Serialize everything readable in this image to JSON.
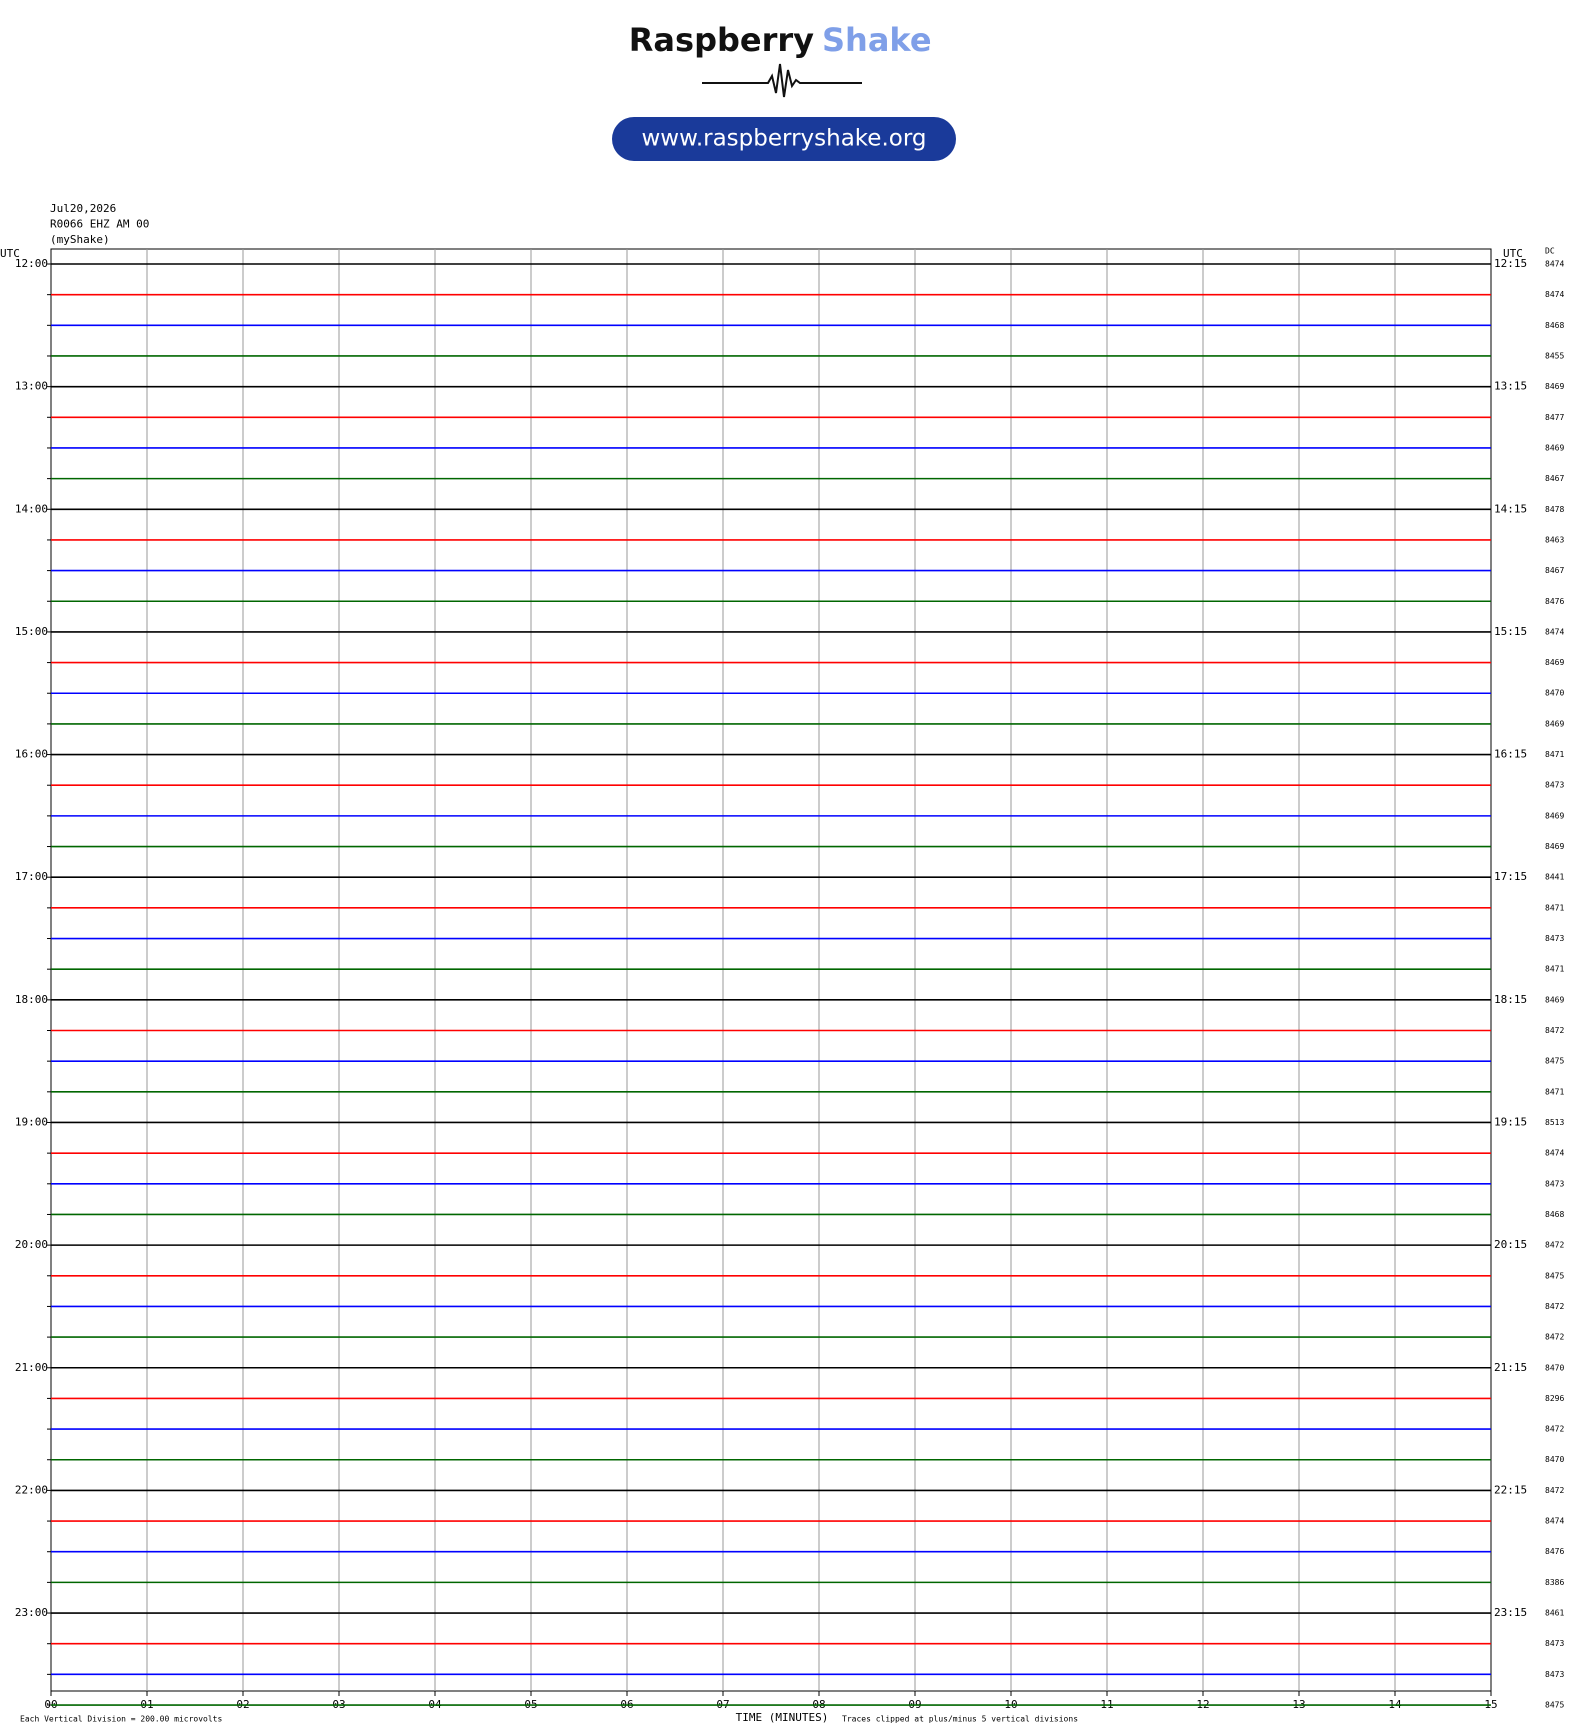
{
  "header": {
    "brand_dark": "Raspberry",
    "brand_light": "Shake",
    "url": "www.raspberryshake.org"
  },
  "info": [
    "Jul20,2026",
    "R0066 EHZ AM 00",
    "(myShake)"
  ],
  "left_axis_label": "UTC",
  "right_axis_label": "UTC",
  "dc_label": "DC",
  "trace_colors": [
    "#000000",
    "#ff0000",
    "#0000ff",
    "#006600"
  ],
  "hours": [
    {
      "left": "12:00",
      "right": "12:15"
    },
    {
      "left": "13:00",
      "right": "13:15"
    },
    {
      "left": "14:00",
      "right": "14:15"
    },
    {
      "left": "15:00",
      "right": "15:15"
    },
    {
      "left": "16:00",
      "right": "16:15"
    },
    {
      "left": "17:00",
      "right": "17:15"
    },
    {
      "left": "18:00",
      "right": "18:15"
    },
    {
      "left": "19:00",
      "right": "19:15"
    },
    {
      "left": "20:00",
      "right": "20:15"
    },
    {
      "left": "21:00",
      "right": "21:15"
    },
    {
      "left": "22:00",
      "right": "22:15"
    },
    {
      "left": "23:00",
      "right": "23:15"
    }
  ],
  "dc": [
    8474,
    8474,
    8468,
    8455,
    8469,
    8477,
    8469,
    8467,
    8478,
    8463,
    8467,
    8476,
    8474,
    8469,
    8470,
    8469,
    8471,
    8473,
    8469,
    8469,
    8441,
    8471,
    8473,
    8471,
    8469,
    8472,
    8475,
    8471,
    8513,
    8474,
    8473,
    8468,
    8472,
    8475,
    8472,
    8472,
    8470,
    8296,
    8472,
    8470,
    8472,
    8474,
    8476,
    8386,
    8461,
    8473,
    8473,
    8475
  ],
  "x_ticks": [
    "00",
    "01",
    "02",
    "03",
    "04",
    "05",
    "06",
    "07",
    "08",
    "09",
    "10",
    "11",
    "12",
    "13",
    "14",
    "15"
  ],
  "x_label": "TIME (MINUTES)",
  "footer_left": "Each Vertical Division =  200.00 microvolts",
  "footer_right": "Traces clipped at plus/minus 5 vertical divisions"
}
